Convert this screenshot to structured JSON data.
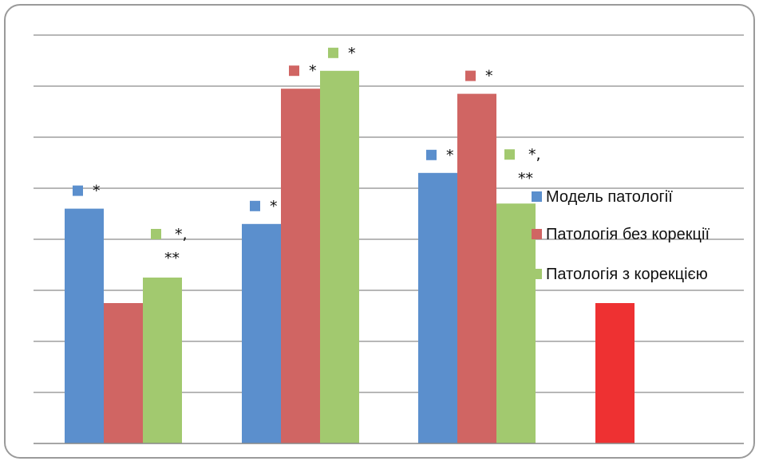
{
  "chart_data": {
    "type": "bar",
    "title": "",
    "xlabel": "",
    "ylabel": "",
    "ylim": [
      0,
      8
    ],
    "grid": true,
    "gridline_count": 8,
    "legend_position": "right",
    "categories": [
      "",
      "",
      ""
    ],
    "series": [
      {
        "name": "Модель патології",
        "color": "#5b8fcd",
        "values": [
          4.6,
          4.3,
          5.3
        ],
        "annotations": [
          "*",
          "*",
          "*"
        ]
      },
      {
        "name": "Патологія без корекції",
        "color": "#d06563",
        "values": [
          2.75,
          6.95,
          6.85
        ],
        "annotations": [
          "",
          "*",
          "*"
        ]
      },
      {
        "name": "Патологія з корекцією",
        "color": "#a2c96f",
        "values": [
          3.25,
          7.3,
          4.7
        ],
        "annotations": [
          "*, **",
          "*",
          "*, **"
        ]
      }
    ],
    "extra_bar": {
      "value": 2.75,
      "color": "#ee3132"
    },
    "gridline_color": "#8c8c8c",
    "axis_color": "#888888"
  }
}
